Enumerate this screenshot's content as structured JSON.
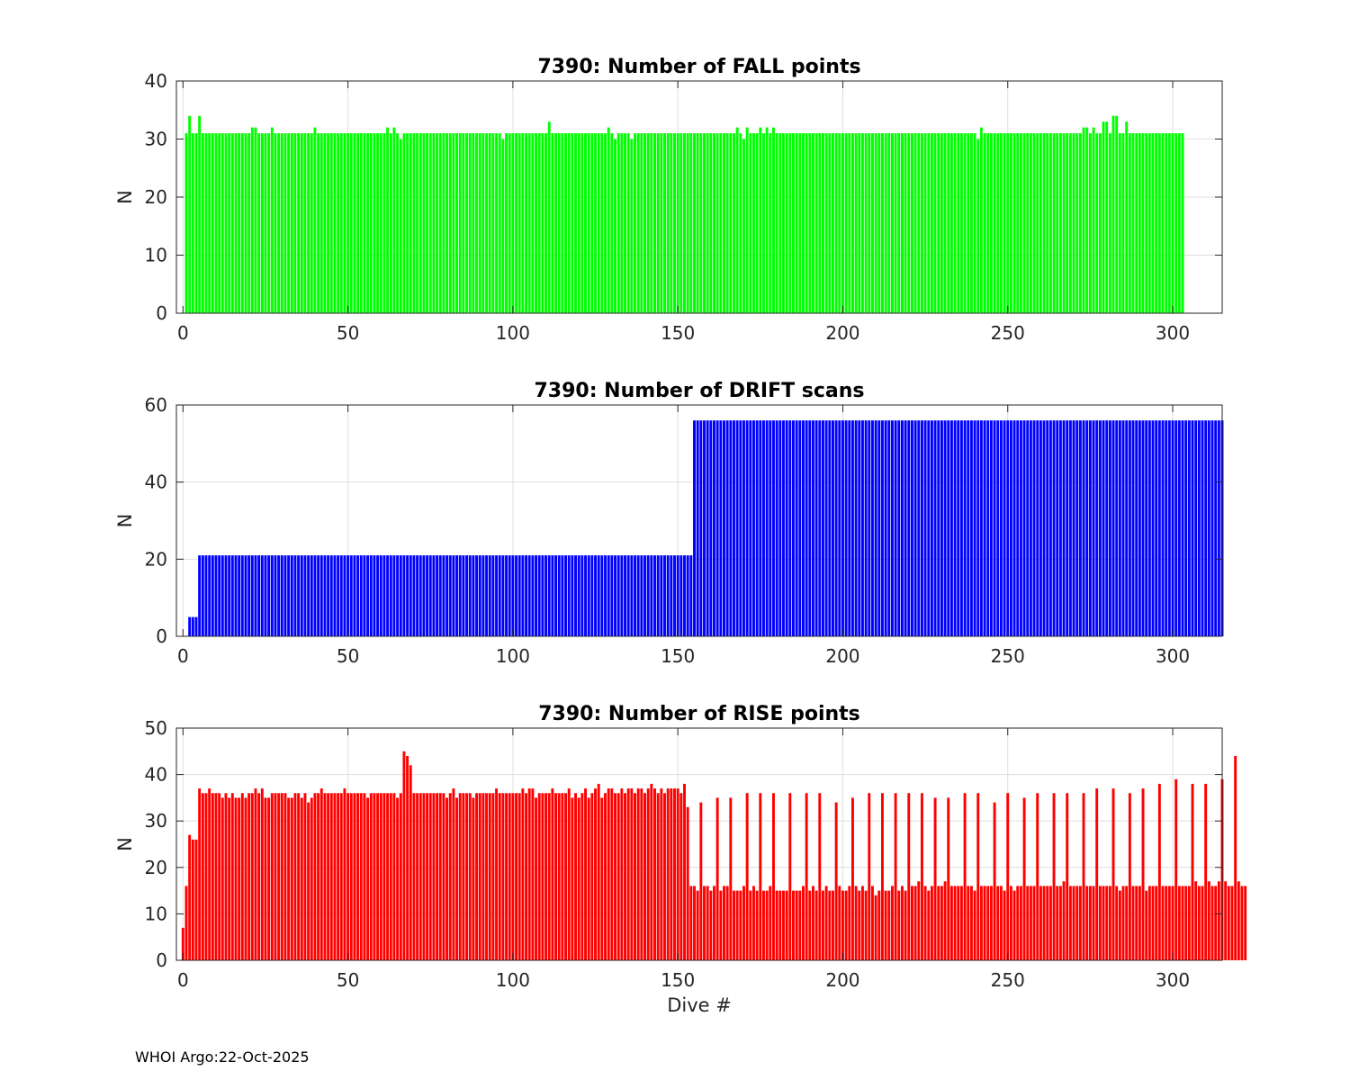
{
  "footer": {
    "text": "WHOI Argo:22-Oct-2025"
  },
  "chart_data": [
    {
      "type": "bar",
      "title": "7390: Number of FALL points",
      "xlabel": "",
      "ylabel": "N",
      "color": "#00ff00",
      "xlim": [
        -2,
        315
      ],
      "ylim": [
        0,
        40
      ],
      "xticks": [
        0,
        50,
        100,
        150,
        200,
        250,
        300
      ],
      "yticks": [
        0,
        10,
        20,
        30,
        40
      ],
      "grid": true,
      "series_rle": [
        [
          1,
          0
        ],
        [
          1,
          31
        ],
        [
          1,
          34
        ],
        [
          2,
          31
        ],
        [
          1,
          34
        ],
        [
          15,
          31
        ],
        [
          2,
          32
        ],
        [
          4,
          31
        ],
        [
          1,
          32
        ],
        [
          12,
          31
        ],
        [
          1,
          32
        ],
        [
          21,
          31
        ],
        [
          1,
          32
        ],
        [
          1,
          31
        ],
        [
          1,
          32
        ],
        [
          1,
          31
        ],
        [
          1,
          30
        ],
        [
          30,
          31
        ],
        [
          1,
          30
        ],
        [
          13,
          31
        ],
        [
          1,
          33
        ],
        [
          17,
          31
        ],
        [
          1,
          32
        ],
        [
          1,
          31
        ],
        [
          1,
          30
        ],
        [
          4,
          31
        ],
        [
          1,
          30
        ],
        [
          31,
          31
        ],
        [
          1,
          32
        ],
        [
          1,
          31
        ],
        [
          1,
          30
        ],
        [
          1,
          32
        ],
        [
          1,
          31
        ],
        [
          2,
          31
        ],
        [
          1,
          32
        ],
        [
          1,
          31
        ],
        [
          1,
          32
        ],
        [
          1,
          31
        ],
        [
          1,
          32
        ],
        [
          61,
          31
        ],
        [
          1,
          30
        ],
        [
          1,
          32
        ],
        [
          30,
          31
        ],
        [
          2,
          32
        ],
        [
          1,
          31
        ],
        [
          1,
          32
        ],
        [
          2,
          31
        ],
        [
          1,
          33
        ],
        [
          1,
          33
        ],
        [
          1,
          31
        ],
        [
          2,
          34
        ],
        [
          1,
          31
        ],
        [
          1,
          31
        ],
        [
          1,
          33
        ],
        [
          17,
          31
        ]
      ]
    },
    {
      "type": "bar",
      "title": "7390: Number of DRIFT scans",
      "xlabel": "",
      "ylabel": "N",
      "color": "#0000ff",
      "xlim": [
        -2,
        315
      ],
      "ylim": [
        0,
        60
      ],
      "xticks": [
        0,
        50,
        100,
        150,
        200,
        250,
        300
      ],
      "yticks": [
        0,
        20,
        40,
        60
      ],
      "grid": true,
      "series_rle": [
        [
          2,
          0
        ],
        [
          3,
          5
        ],
        [
          150,
          21
        ],
        [
          161,
          56
        ]
      ]
    },
    {
      "type": "bar",
      "title": "7390: Number of RISE points",
      "xlabel": "Dive #",
      "ylabel": "N",
      "color": "#ff0000",
      "xlim": [
        -2,
        315
      ],
      "ylim": [
        0,
        50
      ],
      "xticks": [
        0,
        50,
        100,
        150,
        200,
        250,
        300
      ],
      "yticks": [
        0,
        10,
        20,
        30,
        40,
        50
      ],
      "grid": true,
      "values": [
        7,
        16,
        27,
        26,
        26,
        37,
        36,
        36,
        37,
        36,
        36,
        36,
        35,
        36,
        35,
        36,
        35,
        35,
        36,
        35,
        36,
        36,
        37,
        36,
        37,
        35,
        35,
        36,
        36,
        36,
        36,
        36,
        35,
        35,
        36,
        36,
        35,
        36,
        34,
        35,
        36,
        36,
        37,
        36,
        36,
        36,
        36,
        36,
        36,
        37,
        36,
        36,
        36,
        36,
        36,
        36,
        35,
        36,
        36,
        36,
        36,
        36,
        36,
        36,
        36,
        35,
        36,
        45,
        44,
        42,
        36,
        36,
        36,
        36,
        36,
        36,
        36,
        36,
        36,
        36,
        35,
        36,
        37,
        35,
        36,
        36,
        36,
        36,
        35,
        36,
        36,
        36,
        36,
        36,
        36,
        37,
        36,
        36,
        36,
        36,
        36,
        36,
        36,
        37,
        36,
        37,
        37,
        35,
        36,
        36,
        36,
        36,
        37,
        36,
        36,
        36,
        36,
        37,
        35,
        36,
        35,
        36,
        37,
        35,
        36,
        37,
        38,
        35,
        36,
        37,
        37,
        36,
        36,
        37,
        36,
        37,
        37,
        36,
        37,
        37,
        36,
        37,
        38,
        37,
        36,
        37,
        36,
        37,
        37,
        37,
        37,
        36,
        38,
        33,
        16,
        16,
        15,
        34,
        16,
        16,
        15,
        16,
        35,
        15,
        16,
        16,
        35,
        15,
        15,
        15,
        16,
        36,
        15,
        16,
        15,
        36,
        15,
        15,
        16,
        36,
        15,
        15,
        15,
        15,
        36,
        15,
        15,
        15,
        16,
        36,
        15,
        16,
        15,
        36,
        15,
        16,
        15,
        15,
        34,
        16,
        15,
        15,
        16,
        35,
        16,
        15,
        16,
        15,
        36,
        16,
        14,
        15,
        36,
        15,
        15,
        16,
        36,
        15,
        16,
        15,
        36,
        16,
        16,
        17,
        36,
        16,
        15,
        16,
        35,
        16,
        16,
        17,
        35,
        16,
        16,
        16,
        16,
        36,
        16,
        16,
        15,
        36,
        16,
        16,
        16,
        16,
        34,
        16,
        16,
        15,
        36,
        16,
        15,
        16,
        16,
        35,
        16,
        16,
        16,
        36,
        16,
        16,
        16,
        16,
        36,
        16,
        16,
        17,
        36,
        16,
        16,
        16,
        16,
        36,
        16,
        16,
        16,
        37,
        16,
        16,
        16,
        16,
        37,
        16,
        15,
        16,
        16,
        36,
        16,
        16,
        16,
        37,
        15,
        16,
        16,
        16,
        38,
        16,
        16,
        16,
        16,
        39,
        16,
        16,
        16,
        16,
        38,
        17,
        16,
        16,
        38,
        17,
        16,
        16,
        17,
        39,
        17,
        16,
        16,
        44,
        17,
        16,
        16
      ]
    }
  ]
}
